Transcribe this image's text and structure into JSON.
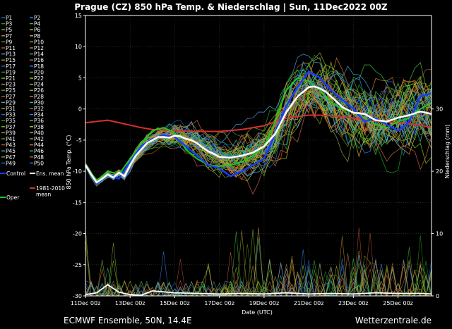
{
  "chart_data": {
    "type": "line",
    "title": "Prague  (CZ)  850 hPa Temp. & Niederschlag | Sun, 11Dec2022 00Z",
    "xlabel": "Date (UTC)",
    "ylabel": "850 hPa Temp. (°C)",
    "ylabel_right": "Niederschlag (mm)",
    "footer_left": "ECMWF Ensemble, 50N, 14.4E",
    "footer_right": "Wetterzentrale.de",
    "x_ticks": [
      "11Dec 00z",
      "13Dec 00z",
      "15Dec 00z",
      "17Dec 00z",
      "19Dec 00z",
      "21Dec 00z",
      "23Dec 00z",
      "25Dec 00z"
    ],
    "x_range_days": [
      0,
      15.5
    ],
    "ylim": [
      -30,
      15
    ],
    "y_ticks": [
      "15",
      "10",
      "5",
      "0",
      "-5",
      "-10",
      "-15",
      "-20",
      "-25",
      "-30"
    ],
    "ylim_right": [
      0,
      45
    ],
    "y_ticks_right": [
      "30",
      "20",
      "10",
      "0"
    ],
    "grid": true,
    "legend_placement": "left",
    "members": [
      "P1",
      "P2",
      "P3",
      "P4",
      "P5",
      "P6",
      "P7",
      "P8",
      "P9",
      "P10",
      "P11",
      "P12",
      "P13",
      "P14",
      "P15",
      "P16",
      "P17",
      "P18",
      "P19",
      "P20",
      "P21",
      "P22",
      "P23",
      "P24",
      "P25",
      "P26",
      "P27",
      "P28",
      "P29",
      "P30",
      "P31",
      "P32",
      "P33",
      "P34",
      "P35",
      "P36",
      "P37",
      "P38",
      "P39",
      "P40",
      "P41",
      "P42",
      "P43",
      "P44",
      "P45",
      "P46",
      "P47",
      "P48",
      "P49",
      "P50"
    ],
    "member_colors": [
      "#1f6fd0",
      "#2e86ff",
      "#1aa61a",
      "#3cc43c",
      "#7dc41f",
      "#b8d21c",
      "#c88a2a",
      "#d2a83c",
      "#6d8f2f",
      "#8fb43a",
      "#c0582a",
      "#d87a3a",
      "#4aa3d8",
      "#2fbf9f",
      "#a0a030",
      "#cc6644"
    ],
    "special_series": [
      {
        "name": "Control",
        "color": "#1a3cff"
      },
      {
        "name": "Ens. mean",
        "color": "#ffffff"
      },
      {
        "name": "1981-2010 mean",
        "color": "#d83030"
      },
      {
        "name": "Oper",
        "color": "#22c722"
      }
    ],
    "ens_mean": {
      "x": [
        0,
        0.25,
        0.5,
        0.75,
        1,
        1.25,
        1.5,
        1.75,
        2,
        2.25,
        2.5,
        2.75,
        3,
        3.25,
        3.5,
        3.75,
        4,
        4.25,
        4.5,
        4.75,
        5,
        5.25,
        5.5,
        5.75,
        6,
        6.5,
        7,
        7.5,
        8,
        8.5,
        9,
        9.5,
        10,
        10.25,
        10.5,
        10.75,
        11,
        11.25,
        11.5,
        12,
        12.5,
        13,
        13.5,
        14,
        14.5,
        15,
        15.5
      ],
      "y": [
        -9,
        -10.5,
        -11.8,
        -11.2,
        -10.5,
        -11,
        -10.2,
        -10.8,
        -9,
        -7.5,
        -6.5,
        -5.5,
        -5,
        -4.5,
        -4.5,
        -4.6,
        -4.3,
        -4.4,
        -4.8,
        -5,
        -5.5,
        -6.2,
        -6.8,
        -7.2,
        -7.7,
        -7.8,
        -7.5,
        -7,
        -6,
        -4,
        -0.5,
        2,
        3.5,
        3.6,
        3.3,
        2.8,
        2,
        1.2,
        0.3,
        -0.6,
        -0.8,
        -1.8,
        -2,
        -1.4,
        -1,
        -0.4,
        -0.8
      ]
    },
    "control": {
      "x": [
        0,
        0.5,
        1,
        1.5,
        2,
        2.5,
        3,
        3.5,
        4,
        4.5,
        5,
        5.5,
        6,
        6.5,
        7,
        7.5,
        8,
        8.5,
        9,
        9.5,
        10,
        10.5,
        11,
        11.5,
        12,
        12.5,
        13,
        13.5,
        14,
        14.5,
        15,
        15.5
      ],
      "y": [
        -9.2,
        -12,
        -10.5,
        -11.2,
        -8.5,
        -6,
        -4.8,
        -4.2,
        -4.5,
        -6,
        -7.5,
        -9,
        -9.5,
        -10.8,
        -10,
        -9,
        -8,
        -4,
        0.5,
        3.5,
        6,
        5,
        3,
        1.5,
        0,
        -2,
        -1.5,
        -2.5,
        -3.5,
        -2,
        2,
        2.5
      ]
    },
    "oper": {
      "x": [
        0,
        0.5,
        1,
        1.5,
        2,
        2.5,
        3,
        3.5,
        4,
        4.5,
        5,
        5.5,
        6,
        6.5,
        7,
        7.5,
        8,
        8.5,
        9,
        9.5,
        10,
        10.5,
        11,
        11.5,
        12,
        12.5,
        13,
        13.5,
        14,
        14.5,
        15,
        15.5
      ],
      "y": [
        -9,
        -11.5,
        -10,
        -10.5,
        -8,
        -5.5,
        -3.5,
        -3,
        -3.8,
        -6.5,
        -8,
        -9,
        -9.2,
        -9,
        -8.5,
        -7.5,
        -6,
        -2,
        3,
        5,
        4.5,
        3,
        1,
        0,
        -0.5,
        -1.5,
        -2.5,
        -3,
        -2,
        -1.5,
        0,
        1
      ]
    },
    "climate_mean": {
      "x": [
        0,
        0.5,
        1,
        1.5,
        2,
        2.5,
        3,
        4,
        5,
        6,
        7,
        8,
        8.5,
        9,
        9.5,
        10,
        10.5,
        11,
        11.5,
        12,
        13,
        14,
        15,
        15.5
      ],
      "y": [
        -2.2,
        -2,
        -1.8,
        -2.2,
        -2.6,
        -3,
        -3.3,
        -3.5,
        -3.6,
        -3.6,
        -3.3,
        -2.7,
        -2,
        -1.5,
        -1.2,
        -1,
        -1,
        -1.1,
        -1.3,
        -1.5,
        -1.9,
        -2.2,
        -2.6,
        -3
      ]
    },
    "ens_mean_precip": {
      "x": [
        0,
        0.5,
        1,
        1.5,
        2,
        2.5,
        3,
        4,
        5,
        6,
        7,
        8,
        9,
        10,
        11,
        12,
        13,
        14,
        15,
        15.5
      ],
      "y": [
        0.2,
        0.5,
        1.8,
        0.6,
        0.2,
        0.1,
        0.8,
        0.5,
        0.4,
        0.3,
        0.4,
        0.3,
        0.5,
        0.3,
        0.4,
        0.3,
        0.5,
        0.4,
        0.4,
        0.3
      ]
    },
    "member_summary": "50 perturbed members spread roughly between -15 and +15 °C; precipitation spikes up to about 12 mm"
  }
}
